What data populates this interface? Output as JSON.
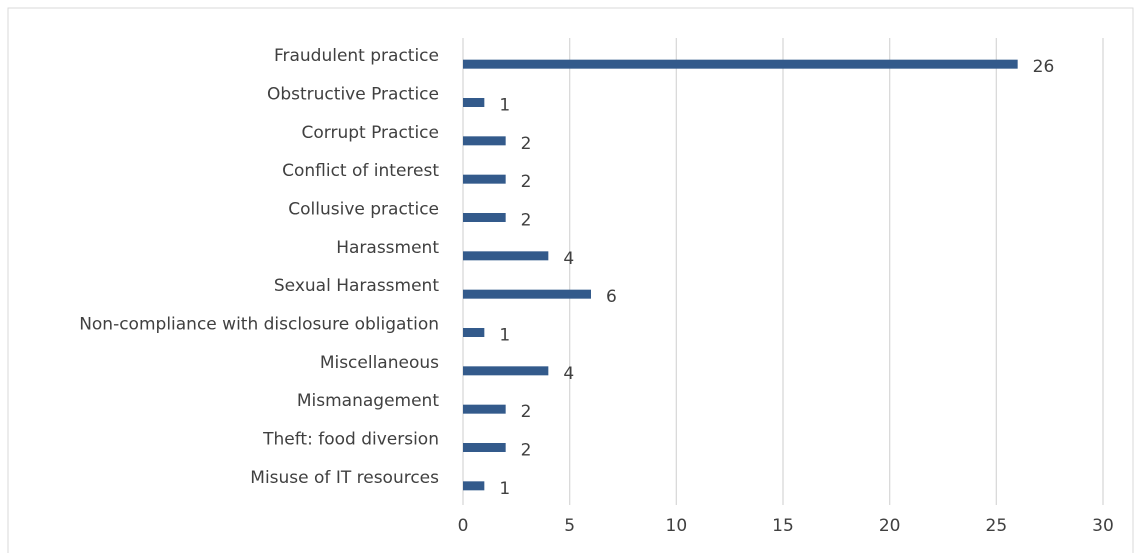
{
  "chart_data": {
    "type": "bar",
    "orientation": "horizontal",
    "categories": [
      "Fraudulent practice",
      "Obstructive Practice",
      "Corrupt Practice",
      "Conflict of interest",
      "Collusive practice",
      "Harassment",
      "Sexual Harassment",
      "Non-compliance with disclosure obligation",
      "Miscellaneous",
      "Mismanagement",
      "Theft: food diversion",
      "Misuse of IT resources"
    ],
    "values": [
      26,
      1,
      2,
      2,
      2,
      4,
      6,
      1,
      4,
      2,
      2,
      1
    ],
    "color": "#335a8b",
    "xlim": [
      0,
      30
    ],
    "xticks": [
      0,
      5,
      10,
      15,
      20,
      25,
      30
    ],
    "grid": true
  }
}
